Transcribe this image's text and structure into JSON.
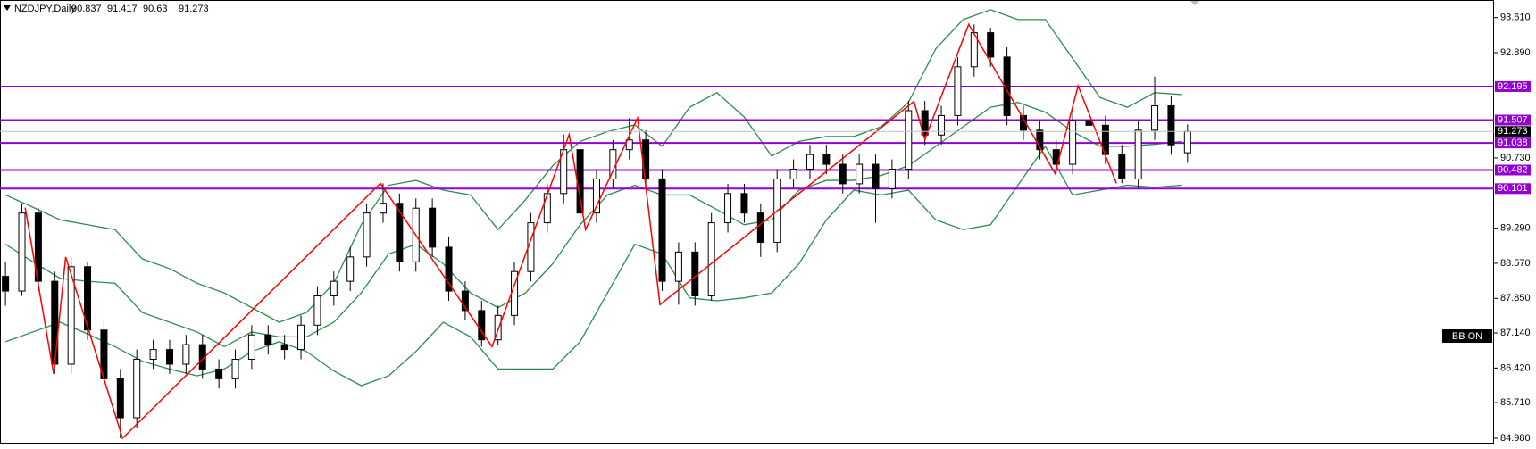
{
  "chart_data": {
    "type": "candlestick",
    "title": "NZDJPY,Daily",
    "x": [
      0,
      3,
      6,
      9,
      12,
      15,
      18,
      21,
      24,
      27,
      30,
      33,
      36,
      39,
      42,
      45,
      48,
      51,
      54,
      57,
      60,
      63,
      66,
      69,
      72,
      75,
      78,
      81,
      84,
      87,
      90,
      93,
      96,
      99,
      102,
      105,
      108,
      111,
      114,
      117,
      120,
      123,
      126,
      129,
      132,
      135,
      138,
      141,
      144,
      147,
      150,
      153,
      156,
      159,
      162,
      165,
      168,
      171,
      174,
      177,
      180,
      183,
      186,
      189,
      192,
      195,
      198,
      201,
      204,
      207,
      210,
      213,
      216
    ],
    "open": [
      88.3,
      88.0,
      89.6,
      88.2,
      86.5,
      88.5,
      87.2,
      86.2,
      85.4,
      86.6,
      86.8,
      86.5,
      86.9,
      86.4,
      86.2,
      86.6,
      87.1,
      86.9,
      86.8,
      87.3,
      87.9,
      88.2,
      88.7,
      89.6,
      89.8,
      88.6,
      89.7,
      88.9,
      88.0,
      87.6,
      87.0,
      87.5,
      88.4,
      89.4,
      90.0,
      90.9,
      89.6,
      90.3,
      90.9,
      91.1,
      90.3,
      88.2,
      88.8,
      87.9,
      89.4,
      90.0,
      89.6,
      89.0,
      90.3,
      90.5,
      90.8,
      90.6,
      90.2,
      90.6,
      90.1,
      90.5,
      91.7,
      91.2,
      91.6,
      92.6,
      93.3,
      92.8,
      91.6,
      91.3,
      90.9,
      90.6,
      91.5,
      91.4,
      90.8,
      90.3,
      91.3,
      91.8,
      90.837
    ],
    "high": [
      88.6,
      89.8,
      89.7,
      88.4,
      88.7,
      88.6,
      87.4,
      86.4,
      86.8,
      87.0,
      87.0,
      87.1,
      87.1,
      86.6,
      86.8,
      87.3,
      87.3,
      87.1,
      87.5,
      88.1,
      88.4,
      88.9,
      89.8,
      90.21,
      90.0,
      89.9,
      89.9,
      89.1,
      88.2,
      87.8,
      87.7,
      88.6,
      89.6,
      90.2,
      91.21,
      91.0,
      90.5,
      91.1,
      91.55,
      91.3,
      90.5,
      89.0,
      89.0,
      89.6,
      90.2,
      90.2,
      89.8,
      90.5,
      90.7,
      91.0,
      91.0,
      90.8,
      90.8,
      90.8,
      90.7,
      91.9,
      91.9,
      91.8,
      92.8,
      93.47,
      93.4,
      93.0,
      91.8,
      91.5,
      91.1,
      91.7,
      92.21,
      91.6,
      91.0,
      91.5,
      92.4,
      92.0,
      91.417
    ],
    "low": [
      87.7,
      87.9,
      88.0,
      86.3,
      86.3,
      87.0,
      86.0,
      84.98,
      85.2,
      86.4,
      86.3,
      86.3,
      86.2,
      86.0,
      86.0,
      86.4,
      86.7,
      86.6,
      86.6,
      87.1,
      87.7,
      88.0,
      88.5,
      89.4,
      88.4,
      88.4,
      88.7,
      87.8,
      87.4,
      86.86,
      86.9,
      87.3,
      88.2,
      89.2,
      89.8,
      89.26,
      89.4,
      90.1,
      90.7,
      90.1,
      88.0,
      87.72,
      87.7,
      87.8,
      89.2,
      89.4,
      88.7,
      88.8,
      90.1,
      90.3,
      90.4,
      90.0,
      90.0,
      89.4,
      89.9,
      90.3,
      91.0,
      91.0,
      91.4,
      92.4,
      92.6,
      91.4,
      91.1,
      90.7,
      90.41,
      90.4,
      91.2,
      90.6,
      90.21,
      90.1,
      91.1,
      90.8,
      90.63
    ],
    "close": [
      88.0,
      89.6,
      88.2,
      86.5,
      88.5,
      87.2,
      86.2,
      85.4,
      86.6,
      86.8,
      86.5,
      86.9,
      86.4,
      86.2,
      86.6,
      87.1,
      86.9,
      86.8,
      87.3,
      87.9,
      88.2,
      88.7,
      89.6,
      89.8,
      88.6,
      89.7,
      88.9,
      88.0,
      87.6,
      87.0,
      87.5,
      88.4,
      89.4,
      90.0,
      90.9,
      89.6,
      90.3,
      90.9,
      91.1,
      90.3,
      88.2,
      88.8,
      87.9,
      89.4,
      90.0,
      89.6,
      89.0,
      90.3,
      90.5,
      90.8,
      90.6,
      90.2,
      90.6,
      90.1,
      90.5,
      91.7,
      91.2,
      91.6,
      92.6,
      93.3,
      92.8,
      91.6,
      91.3,
      90.9,
      90.6,
      91.5,
      91.4,
      90.8,
      90.3,
      91.3,
      91.8,
      91.0,
      91.273
    ],
    "xlim": [
      -1,
      272
    ],
    "ylim": [
      84.87,
      93.97
    ],
    "yticks": [
      {
        "value": 93.61,
        "label": "93.610"
      },
      {
        "value": 92.89,
        "label": "92.890"
      },
      {
        "value": 90.73,
        "label": "90.730"
      },
      {
        "value": 89.29,
        "label": "89.290"
      },
      {
        "value": 88.57,
        "label": "88.570"
      },
      {
        "value": 87.85,
        "label": "87.850"
      },
      {
        "value": 87.14,
        "label": "87.140"
      },
      {
        "value": 86.42,
        "label": "86.420"
      },
      {
        "value": 85.71,
        "label": "85.710"
      },
      {
        "value": 84.98,
        "label": "84.980"
      }
    ],
    "bands": {
      "color": "#2e8b4f",
      "x": [
        0,
        5,
        10,
        15,
        20,
        25,
        30,
        35,
        40,
        45,
        50,
        55,
        60,
        65,
        70,
        75,
        80,
        85,
        90,
        95,
        100,
        105,
        110,
        115,
        120,
        125,
        130,
        135,
        140,
        145,
        150,
        155,
        160,
        165,
        170,
        175,
        180,
        185,
        190,
        195,
        200,
        205,
        210,
        215
      ],
      "upper": [
        89.97,
        89.72,
        89.46,
        89.36,
        89.26,
        88.66,
        88.46,
        88.16,
        87.96,
        87.66,
        87.36,
        87.56,
        88.16,
        89.36,
        90.17,
        90.27,
        90.07,
        89.97,
        89.26,
        89.87,
        90.57,
        91.07,
        91.27,
        91.41,
        90.97,
        91.77,
        92.07,
        91.57,
        90.77,
        91.07,
        91.17,
        91.17,
        91.37,
        91.87,
        92.97,
        93.57,
        93.77,
        93.57,
        93.57,
        92.77,
        91.97,
        91.77,
        92.07,
        92.03
      ],
      "middle": [
        88.96,
        88.6,
        88.26,
        88.2,
        88.16,
        87.56,
        87.36,
        87.16,
        86.86,
        87.16,
        87.06,
        87.06,
        87.36,
        87.96,
        88.76,
        88.96,
        88.56,
        87.96,
        87.66,
        87.96,
        88.56,
        89.36,
        89.97,
        90.17,
        89.97,
        89.97,
        89.67,
        89.36,
        89.46,
        90.07,
        90.27,
        90.27,
        90.37,
        90.57,
        90.97,
        91.37,
        91.77,
        91.87,
        91.67,
        91.27,
        90.97,
        90.97,
        91.01,
        91.07
      ],
      "lower": [
        86.96,
        87.16,
        87.36,
        87.12,
        86.86,
        86.56,
        86.4,
        86.26,
        86.4,
        86.76,
        86.96,
        86.76,
        86.36,
        86.06,
        86.26,
        86.76,
        87.36,
        87.06,
        86.4,
        86.4,
        86.4,
        86.96,
        87.96,
        88.96,
        88.76,
        87.86,
        87.8,
        87.86,
        87.96,
        88.56,
        89.46,
        90.07,
        89.97,
        90.07,
        89.46,
        89.26,
        89.36,
        90.17,
        90.97,
        89.97,
        90.07,
        90.17,
        90.13,
        90.17
      ]
    },
    "zigzag": {
      "color": "#ff0000",
      "x": [
        3.6,
        8.8,
        11,
        21.4,
        68.5,
        88.9,
        103,
        106,
        115.5,
        119.6,
        166,
        168,
        176,
        191.8,
        196,
        203
      ],
      "values": [
        89.71,
        86.3,
        88.7,
        84.98,
        90.21,
        86.86,
        91.21,
        89.26,
        91.55,
        87.72,
        91.89,
        91.11,
        93.47,
        90.41,
        92.21,
        90.21
      ]
    },
    "levels": {
      "color": "#9400d3",
      "values": [
        92.195,
        91.507,
        91.038,
        90.482,
        90.101
      ]
    },
    "badge": "BB ON"
  }
}
